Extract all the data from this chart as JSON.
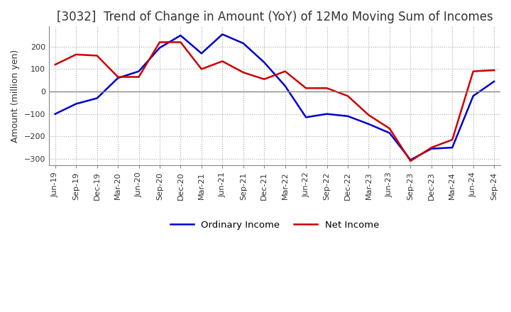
{
  "title": "[3032]  Trend of Change in Amount (YoY) of 12Mo Moving Sum of Incomes",
  "ylabel": "Amount (million yen)",
  "x_labels": [
    "Jun-19",
    "Sep-19",
    "Dec-19",
    "Mar-20",
    "Jun-20",
    "Sep-20",
    "Dec-20",
    "Mar-21",
    "Jun-21",
    "Sep-21",
    "Dec-21",
    "Mar-22",
    "Jun-22",
    "Sep-22",
    "Dec-22",
    "Mar-23",
    "Jun-23",
    "Sep-23",
    "Dec-23",
    "Mar-24",
    "Jun-24",
    "Sep-24"
  ],
  "ordinary_income": [
    -100,
    -55,
    -30,
    60,
    90,
    195,
    250,
    170,
    255,
    215,
    130,
    25,
    -115,
    -100,
    -110,
    -145,
    -185,
    -305,
    -255,
    -250,
    -20,
    45
  ],
  "net_income": [
    120,
    165,
    160,
    65,
    65,
    220,
    220,
    100,
    135,
    85,
    55,
    90,
    15,
    15,
    -20,
    -105,
    -165,
    -310,
    -250,
    -215,
    90,
    95
  ],
  "ylim": [
    -330,
    290
  ],
  "yticks": [
    -300,
    -200,
    -100,
    0,
    100,
    200
  ],
  "ordinary_color": "#0000cc",
  "net_color": "#cc0000",
  "grid_color": "#aaaaaa",
  "zero_line_color": "#888888",
  "title_color": "#333333",
  "background_color": "#ffffff",
  "title_fontsize": 12,
  "ylabel_fontsize": 9,
  "tick_fontsize": 8
}
